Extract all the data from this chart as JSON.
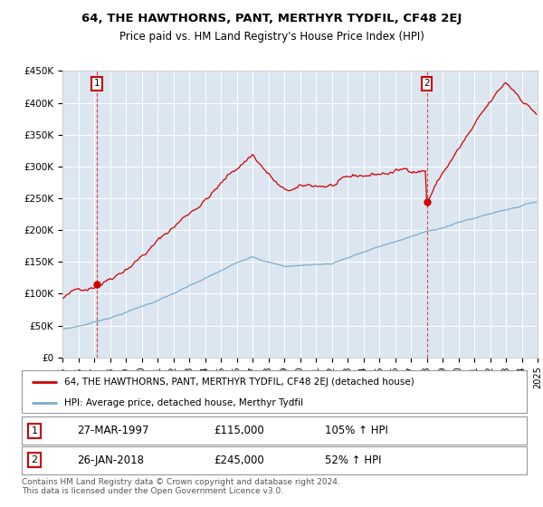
{
  "title": "64, THE HAWTHORNS, PANT, MERTHYR TYDFIL, CF48 2EJ",
  "subtitle": "Price paid vs. HM Land Registry's House Price Index (HPI)",
  "ylabel_ticks": [
    "£0",
    "£50K",
    "£100K",
    "£150K",
    "£200K",
    "£250K",
    "£300K",
    "£350K",
    "£400K",
    "£450K"
  ],
  "ylabel_values": [
    0,
    50000,
    100000,
    150000,
    200000,
    250000,
    300000,
    350000,
    400000,
    450000
  ],
  "ylim": [
    0,
    450000
  ],
  "red_line_color": "#cc0000",
  "blue_line_color": "#7aadce",
  "bg_color": "#dce6f1",
  "grid_color": "#ffffff",
  "annotation1_year": 1997,
  "annotation1_month": 3,
  "annotation1_price": 115000,
  "annotation1_date": "27-MAR-1997",
  "annotation1_label": "105% ↑ HPI",
  "annotation2_year": 2018,
  "annotation2_month": 1,
  "annotation2_price": 245000,
  "annotation2_date": "26-JAN-2018",
  "annotation2_label": "52% ↑ HPI",
  "legend_line1": "64, THE HAWTHORNS, PANT, MERTHYR TYDFIL, CF48 2EJ (detached house)",
  "legend_line2": "HPI: Average price, detached house, Merthyr Tydfil",
  "footer": "Contains HM Land Registry data © Crown copyright and database right 2024.\nThis data is licensed under the Open Government Licence v3.0.",
  "xstart_year": 1995,
  "xend_year": 2025
}
